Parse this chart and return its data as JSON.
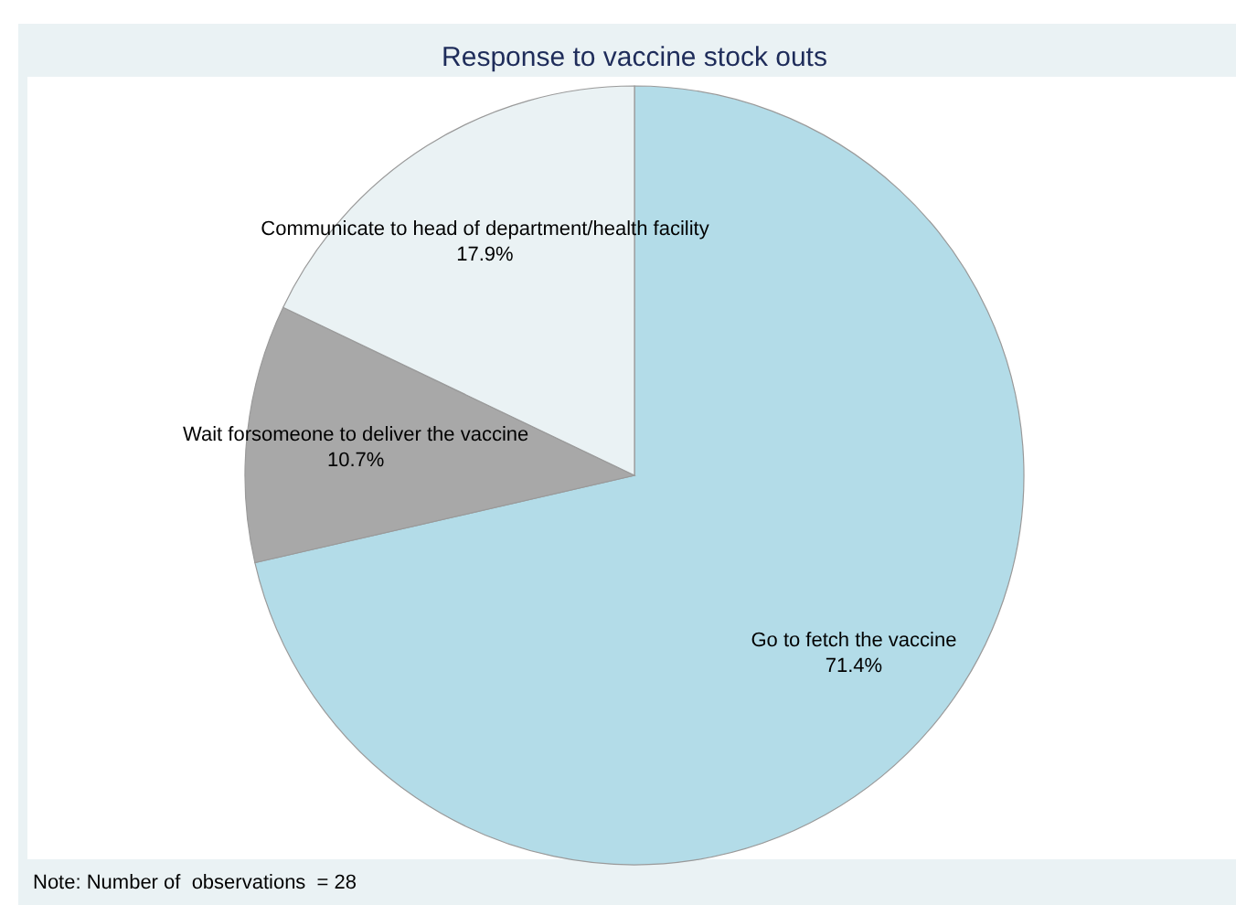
{
  "chart_data": {
    "type": "pie",
    "title": "Response to vaccine stock outs",
    "categories": [
      "Go to fetch the vaccine",
      "Wait forsomeone to deliver the vaccine",
      "Communicate to head of department/health facility"
    ],
    "values": [
      71.4,
      10.7,
      17.9
    ],
    "colors": [
      "#b3dce8",
      "#a8a8a8",
      "#eaf2f4"
    ],
    "value_labels": [
      "71.4%",
      "10.7%",
      "17.9%"
    ],
    "legend": false,
    "annotations": [
      "Note: Number of  observations  = 28"
    ]
  }
}
